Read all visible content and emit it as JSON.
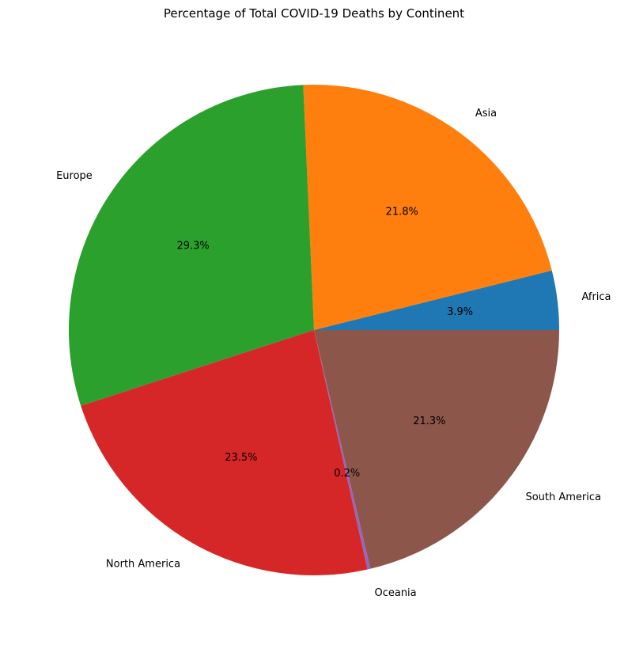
{
  "chart_data": {
    "type": "pie",
    "title": "Percentage of Total COVID-19 Deaths by Continent",
    "categories": [
      "Africa",
      "Asia",
      "Europe",
      "North America",
      "Oceania",
      "South America"
    ],
    "values": [
      3.9,
      21.8,
      29.3,
      23.5,
      0.2,
      21.3
    ],
    "value_labels": [
      "3.9%",
      "21.8%",
      "29.3%",
      "23.5%",
      "0.2%",
      "21.3%"
    ],
    "colors": [
      "#1f77b4",
      "#ff7f0e",
      "#2ca02c",
      "#d62728",
      "#9467bd",
      "#8c564b"
    ],
    "start_angle_deg": 0,
    "direction": "counterclockwise",
    "legend": "none"
  }
}
